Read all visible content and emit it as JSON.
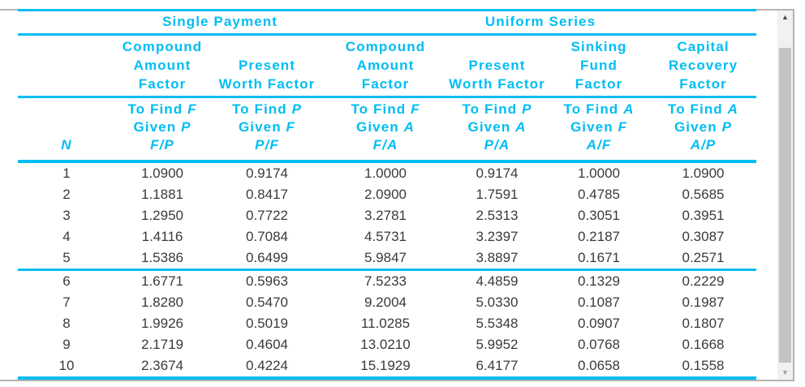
{
  "colors": {
    "accent": "#00BDF2",
    "data_text": "#3A3A3A",
    "frame_border": "#B4B4B4",
    "scrollbar_track": "#F1F1F1",
    "scrollbar_thumb": "#C3C3C3",
    "scrollbar_up_arrow": "#4A4A4A",
    "scrollbar_down_arrow": "#9E9E9E"
  },
  "window": {
    "scrollbar": {
      "up_icon": "▲",
      "down_icon": "▼"
    }
  },
  "table": {
    "group_headers": [
      {
        "label": "Single Payment",
        "span": 2
      },
      {
        "label": "Uniform Series",
        "span": 4
      }
    ],
    "n_header": "N",
    "factor_headers": [
      "Compound\nAmount\nFactor",
      "Present\nWorth Factor",
      "Compound\nAmount\nFactor",
      "Present\nWorth Factor",
      "Sinking\nFund\nFactor",
      "Capital\nRecovery\nFactor"
    ],
    "tofind_headers": [
      "To Find F\nGiven P\nF/P",
      "To Find P\nGiven F\nP/F",
      "To Find F\nGiven A\nF/A",
      "To Find P\nGiven A\nP/A",
      "To Find A\nGiven F\nA/F",
      "To Find A\nGiven P\nA/P"
    ],
    "rows": [
      {
        "n": "1",
        "values": [
          "1.0900",
          "0.9174",
          "1.0000",
          "0.9174",
          "1.0000",
          "1.0900"
        ]
      },
      {
        "n": "2",
        "values": [
          "1.1881",
          "0.8417",
          "2.0900",
          "1.7591",
          "0.4785",
          "0.5685"
        ]
      },
      {
        "n": "3",
        "values": [
          "1.2950",
          "0.7722",
          "3.2781",
          "2.5313",
          "0.3051",
          "0.3951"
        ]
      },
      {
        "n": "4",
        "values": [
          "1.4116",
          "0.7084",
          "4.5731",
          "3.2397",
          "0.2187",
          "0.3087"
        ]
      },
      {
        "n": "5",
        "values": [
          "1.5386",
          "0.6499",
          "5.9847",
          "3.8897",
          "0.1671",
          "0.2571"
        ]
      },
      {
        "n": "6",
        "values": [
          "1.6771",
          "0.5963",
          "7.5233",
          "4.4859",
          "0.1329",
          "0.2229"
        ]
      },
      {
        "n": "7",
        "values": [
          "1.8280",
          "0.5470",
          "9.2004",
          "5.0330",
          "0.1087",
          "0.1987"
        ]
      },
      {
        "n": "8",
        "values": [
          "1.9926",
          "0.5019",
          "11.0285",
          "5.5348",
          "0.0907",
          "0.1807"
        ]
      },
      {
        "n": "9",
        "values": [
          "2.1719",
          "0.4604",
          "13.0210",
          "5.9952",
          "0.0768",
          "0.1668"
        ]
      },
      {
        "n": "10",
        "values": [
          "2.3674",
          "0.4224",
          "15.1929",
          "6.4177",
          "0.0658",
          "0.1558"
        ]
      }
    ]
  }
}
